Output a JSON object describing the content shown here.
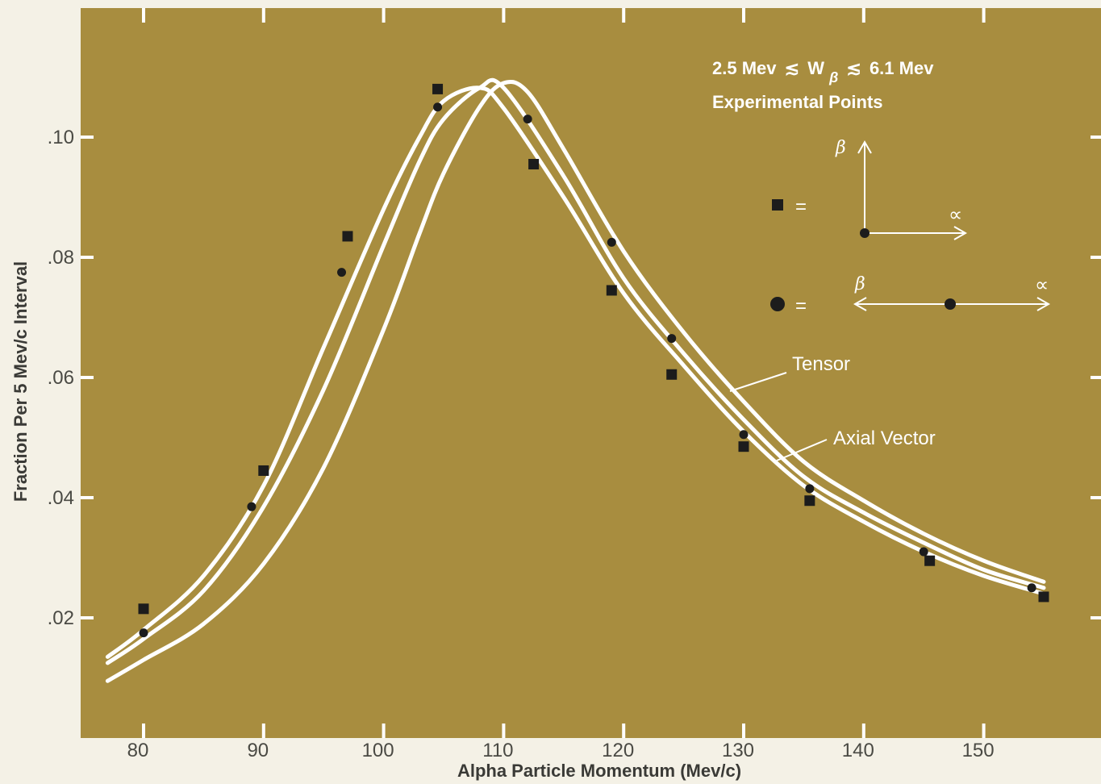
{
  "chart_data": {
    "type": "line",
    "title": "",
    "xlabel": "Alpha Particle Momentum (Mev/c)",
    "ylabel": "Fraction Per 5 Mev/c Interval",
    "xlim": [
      75,
      155
    ],
    "ylim": [
      0,
      0.12
    ],
    "x_ticks": [
      80,
      90,
      100,
      110,
      120,
      130,
      140,
      150
    ],
    "x_tick_labels": [
      "80",
      "90",
      "100",
      "110",
      "120",
      "130",
      "140",
      "150"
    ],
    "y_ticks": [
      0.02,
      0.04,
      0.06,
      0.08,
      0.1
    ],
    "y_tick_labels": [
      ".02",
      ".04",
      ".06",
      ".08",
      ".10"
    ],
    "grid": false,
    "background_color": "#a88d3f",
    "curve_color": "#ffffff",
    "marker_color": "#1c1c1c",
    "series": [
      {
        "name": "",
        "x": [
          77,
          80,
          85,
          90,
          95,
          100,
          103,
          105,
          108,
          110,
          115,
          120,
          125,
          130,
          135,
          140,
          145,
          150,
          155
        ],
        "y": [
          0.0135,
          0.018,
          0.027,
          0.042,
          0.065,
          0.088,
          0.1,
          0.106,
          0.1082,
          0.1048,
          0.09,
          0.074,
          0.062,
          0.051,
          0.042,
          0.036,
          0.031,
          0.027,
          0.024
        ]
      },
      {
        "name": "",
        "x": [
          77,
          80,
          85,
          90,
          95,
          100,
          103,
          105,
          108,
          110,
          115,
          120,
          125,
          130,
          135,
          140,
          145,
          150,
          155
        ],
        "y": [
          0.0125,
          0.0165,
          0.0245,
          0.0385,
          0.058,
          0.082,
          0.096,
          0.103,
          0.1082,
          0.1082,
          0.0935,
          0.0765,
          0.064,
          0.053,
          0.0435,
          0.0375,
          0.0325,
          0.028,
          0.025
        ]
      },
      {
        "name": "",
        "x": [
          77,
          80,
          85,
          90,
          95,
          100,
          103,
          105,
          108,
          110,
          112,
          115,
          120,
          125,
          130,
          135,
          140,
          145,
          150,
          155
        ],
        "y": [
          0.0095,
          0.013,
          0.019,
          0.029,
          0.045,
          0.068,
          0.084,
          0.094,
          0.105,
          0.109,
          0.1075,
          0.098,
          0.081,
          0.0675,
          0.056,
          0.046,
          0.0395,
          0.034,
          0.0295,
          0.026
        ]
      }
    ],
    "points_square": {
      "x": [
        80,
        90,
        97,
        104.5,
        112.5,
        119,
        124,
        130,
        135.5,
        145.5,
        155
      ],
      "y": [
        0.0215,
        0.0445,
        0.0835,
        0.108,
        0.0955,
        0.0745,
        0.0605,
        0.0485,
        0.0395,
        0.0295,
        0.0235
      ]
    },
    "points_circle": {
      "x": [
        80,
        89,
        96.5,
        104.5,
        112,
        119,
        124,
        130,
        135.5,
        145,
        154
      ],
      "y": [
        0.0175,
        0.0385,
        0.0775,
        0.105,
        0.103,
        0.0825,
        0.0665,
        0.0505,
        0.0415,
        0.031,
        0.025
      ]
    },
    "legend": {
      "title_prefix": "2.5 Mev",
      "title_mid": "W",
      "title_sub": "β",
      "title_suffix": "6.1 Mev",
      "approx_symbol": "≲",
      "subtitle": "Experimental Points",
      "equals": "=",
      "beta_symbol": "β",
      "alpha_symbol": "∝"
    },
    "annotations": [
      {
        "text": "Tensor"
      },
      {
        "text": "Axial Vector"
      }
    ]
  }
}
